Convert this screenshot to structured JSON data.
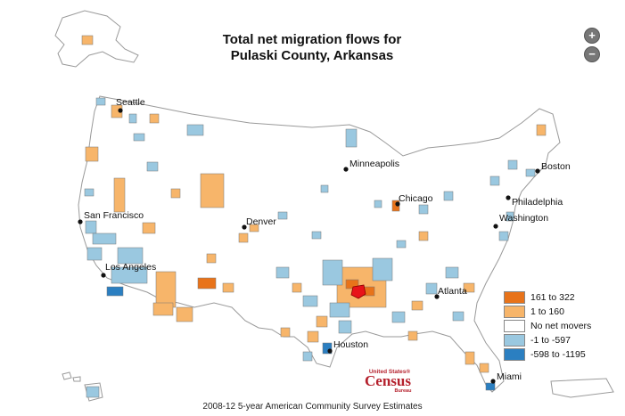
{
  "title": {
    "line1": "Total net migration flows for",
    "line2": "Pulaski County, Arkansas"
  },
  "zoom": {
    "in_label": "+",
    "out_label": "−",
    "in_icon": "zoom-in-icon",
    "out_icon": "zoom-out-icon"
  },
  "cities": {
    "seattle": "Seattle",
    "minneapolis": "Minneapolis",
    "boston": "Boston",
    "chicago": "Chicago",
    "philadelphia": "Philadelphia",
    "san_francisco": "San Francisco",
    "denver": "Denver",
    "washington": "Washington",
    "los_angeles": "Los Angeles",
    "atlanta": "Atlanta",
    "houston": "Houston",
    "miami": "Miami"
  },
  "legend": [
    {
      "label": "161 to 322",
      "color": "#e8731a"
    },
    {
      "label": "1 to 160",
      "color": "#f7b56a"
    },
    {
      "label": "No net movers",
      "color": "#ffffff"
    },
    {
      "label": "-1 to -597",
      "color": "#9ac8e0"
    },
    {
      "label": "-598 to -1195",
      "color": "#2b7fc1"
    }
  ],
  "logo": {
    "top": "United States®",
    "main": "Census",
    "bottom": "Bureau",
    "color": "#b5212d"
  },
  "footer": "2008-12 5-year American Community Survey Estimates",
  "colors": {
    "highlight": "#e8131a",
    "outline": "#9a9a9a",
    "land": "#ffffff"
  }
}
